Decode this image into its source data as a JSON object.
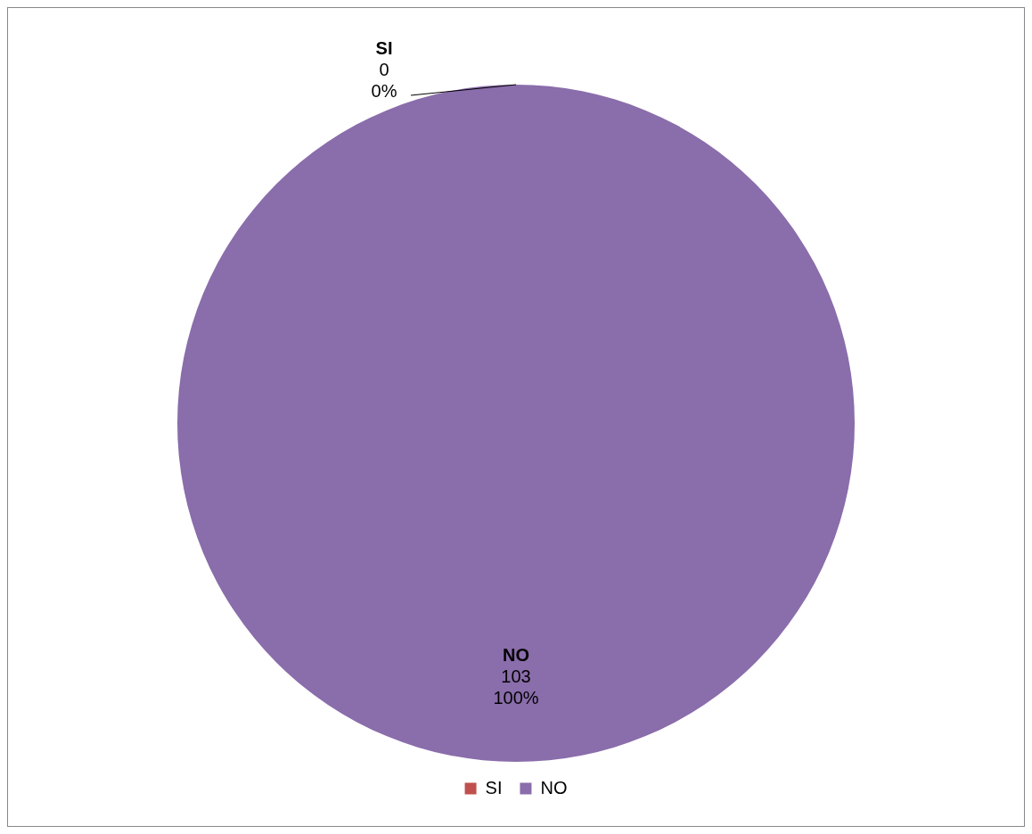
{
  "chart_data": {
    "type": "pie",
    "categories": [
      "SI",
      "NO"
    ],
    "values": [
      0,
      103
    ],
    "colors": [
      "#c0504d",
      "#8a6dab"
    ],
    "value_labels": [
      "0",
      "103"
    ],
    "annotations": [
      "0%",
      "100%"
    ],
    "legend": "bottom"
  }
}
